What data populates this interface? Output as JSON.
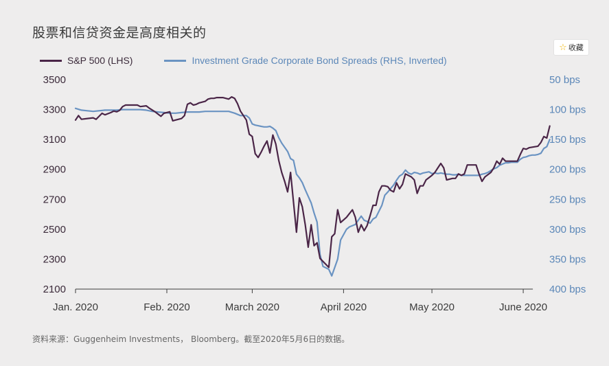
{
  "title": "股票和信贷资金是高度相关的",
  "favorite": {
    "icon": "star-icon",
    "label": "收藏"
  },
  "source": "资料来源：Guggenheim Investments， Bloomberg。截至2020年5月6日的数据。",
  "colors": {
    "sp500": "#4a2547",
    "spreads": "#6a93c2",
    "left_axis": "#3b2a3a",
    "right_axis": "#5b87b8",
    "x_axis": "#3b3b3b"
  },
  "chart_data": {
    "type": "line",
    "x_ticks": [
      {
        "label": "Jan. 2020",
        "day": 0
      },
      {
        "label": "Feb. 2020",
        "day": 31
      },
      {
        "label": "March 2020",
        "day": 60
      },
      {
        "label": "April 2020",
        "day": 91
      },
      {
        "label": "May 2020",
        "day": 121
      },
      {
        "label": "June 2020",
        "day": 152
      }
    ],
    "left_axis": {
      "label": "",
      "min": 2100,
      "max": 3500,
      "ticks": [
        3500,
        3300,
        3100,
        2900,
        2700,
        2500,
        2300,
        2100
      ]
    },
    "right_axis": {
      "label": "",
      "inverted": true,
      "min": 50,
      "max": 400,
      "ticks": [
        50,
        100,
        150,
        200,
        250,
        300,
        350,
        400
      ],
      "tick_labels": [
        "50 bps",
        "100 bps",
        "150 bps",
        "200 bps",
        "250 bps",
        "300 bps",
        "350 bps",
        "400 bps"
      ]
    },
    "series": [
      {
        "name": "S&P 500 (LHS)",
        "axis": "left",
        "points": [
          [
            0,
            3230
          ],
          [
            1,
            3260
          ],
          [
            2,
            3235
          ],
          [
            4,
            3240
          ],
          [
            6,
            3245
          ],
          [
            7,
            3235
          ],
          [
            8,
            3255
          ],
          [
            9,
            3275
          ],
          [
            10,
            3265
          ],
          [
            12,
            3280
          ],
          [
            13,
            3290
          ],
          [
            14,
            3285
          ],
          [
            15,
            3295
          ],
          [
            16,
            3320
          ],
          [
            17,
            3330
          ],
          [
            20,
            3330
          ],
          [
            21,
            3330
          ],
          [
            22,
            3320
          ],
          [
            24,
            3325
          ],
          [
            25,
            3310
          ],
          [
            27,
            3285
          ],
          [
            28,
            3270
          ],
          [
            29,
            3255
          ],
          [
            30,
            3275
          ],
          [
            32,
            3285
          ],
          [
            33,
            3225
          ],
          [
            35,
            3235
          ],
          [
            36,
            3240
          ],
          [
            37,
            3260
          ],
          [
            38,
            3335
          ],
          [
            39,
            3345
          ],
          [
            40,
            3330
          ],
          [
            41,
            3335
          ],
          [
            42,
            3345
          ],
          [
            44,
            3355
          ],
          [
            45,
            3370
          ],
          [
            46,
            3375
          ],
          [
            47,
            3375
          ],
          [
            48,
            3380
          ],
          [
            49,
            3380
          ],
          [
            50,
            3380
          ],
          [
            51,
            3375
          ],
          [
            52,
            3370
          ],
          [
            53,
            3385
          ],
          [
            54,
            3375
          ],
          [
            55,
            3340
          ],
          [
            56,
            3290
          ],
          [
            58,
            3230
          ],
          [
            59,
            3135
          ],
          [
            60,
            3120
          ],
          [
            61,
            3005
          ],
          [
            62,
            2980
          ],
          [
            63,
            3015
          ],
          [
            64,
            3055
          ],
          [
            65,
            3090
          ],
          [
            66,
            3010
          ],
          [
            67,
            3130
          ],
          [
            68,
            3070
          ],
          [
            69,
            2960
          ],
          [
            70,
            2880
          ],
          [
            71,
            2820
          ],
          [
            72,
            2750
          ],
          [
            73,
            2880
          ],
          [
            75,
            2480
          ],
          [
            76,
            2710
          ],
          [
            77,
            2650
          ],
          [
            78,
            2530
          ],
          [
            79,
            2380
          ],
          [
            80,
            2530
          ],
          [
            81,
            2390
          ],
          [
            82,
            2410
          ],
          [
            83,
            2305
          ],
          [
            86,
            2245
          ],
          [
            87,
            2450
          ],
          [
            88,
            2470
          ],
          [
            89,
            2630
          ],
          [
            90,
            2545
          ],
          [
            92,
            2580
          ],
          [
            94,
            2630
          ],
          [
            95,
            2580
          ],
          [
            96,
            2480
          ],
          [
            97,
            2530
          ],
          [
            98,
            2490
          ],
          [
            99,
            2525
          ],
          [
            100,
            2590
          ],
          [
            101,
            2660
          ],
          [
            102,
            2660
          ],
          [
            103,
            2750
          ],
          [
            104,
            2790
          ],
          [
            105,
            2790
          ],
          [
            106,
            2785
          ],
          [
            107,
            2760
          ],
          [
            108,
            2750
          ],
          [
            109,
            2810
          ],
          [
            110,
            2770
          ],
          [
            111,
            2800
          ],
          [
            112,
            2870
          ],
          [
            114,
            2850
          ],
          [
            115,
            2830
          ],
          [
            116,
            2740
          ],
          [
            117,
            2790
          ],
          [
            118,
            2790
          ],
          [
            119,
            2830
          ],
          [
            121,
            2860
          ],
          [
            122,
            2880
          ],
          [
            123,
            2910
          ],
          [
            124,
            2940
          ],
          [
            125,
            2910
          ],
          [
            126,
            2830
          ],
          [
            128,
            2840
          ],
          [
            129,
            2840
          ],
          [
            130,
            2870
          ],
          [
            131,
            2860
          ],
          [
            132,
            2870
          ],
          [
            133,
            2930
          ],
          [
            135,
            2930
          ],
          [
            136,
            2930
          ],
          [
            137,
            2870
          ],
          [
            138,
            2820
          ],
          [
            139,
            2850
          ],
          [
            141,
            2880
          ],
          [
            142,
            2910
          ],
          [
            143,
            2955
          ],
          [
            144,
            2935
          ],
          [
            145,
            2975
          ],
          [
            146,
            2955
          ],
          [
            150,
            2955
          ],
          [
            151,
            3000
          ],
          [
            152,
            3040
          ],
          [
            153,
            3035
          ],
          [
            154,
            3045
          ],
          [
            157,
            3055
          ],
          [
            158,
            3080
          ],
          [
            159,
            3120
          ],
          [
            160,
            3110
          ],
          [
            161,
            3190
          ]
        ]
      },
      {
        "name": "Investment Grade Corporate Bond Spreads (RHS, Inverted)",
        "axis": "right",
        "points": [
          [
            0,
            98
          ],
          [
            2,
            101
          ],
          [
            4,
            102
          ],
          [
            6,
            103
          ],
          [
            8,
            102
          ],
          [
            10,
            101
          ],
          [
            12,
            101
          ],
          [
            14,
            101
          ],
          [
            16,
            100
          ],
          [
            18,
            100
          ],
          [
            20,
            100
          ],
          [
            22,
            100
          ],
          [
            24,
            101
          ],
          [
            26,
            103
          ],
          [
            28,
            104
          ],
          [
            30,
            105
          ],
          [
            32,
            106
          ],
          [
            34,
            106
          ],
          [
            36,
            105
          ],
          [
            38,
            104
          ],
          [
            40,
            104
          ],
          [
            42,
            104
          ],
          [
            44,
            103
          ],
          [
            46,
            103
          ],
          [
            48,
            103
          ],
          [
            50,
            103
          ],
          [
            52,
            103
          ],
          [
            54,
            106
          ],
          [
            56,
            110
          ],
          [
            58,
            110
          ],
          [
            59,
            114
          ],
          [
            60,
            124
          ],
          [
            61,
            126
          ],
          [
            62,
            127
          ],
          [
            63,
            128
          ],
          [
            64,
            129
          ],
          [
            65,
            129
          ],
          [
            66,
            128
          ],
          [
            67,
            131
          ],
          [
            68,
            135
          ],
          [
            69,
            147
          ],
          [
            70,
            156
          ],
          [
            71,
            163
          ],
          [
            72,
            170
          ],
          [
            73,
            182
          ],
          [
            74,
            185
          ],
          [
            75,
            208
          ],
          [
            76,
            214
          ],
          [
            77,
            222
          ],
          [
            78,
            234
          ],
          [
            79,
            245
          ],
          [
            80,
            256
          ],
          [
            81,
            273
          ],
          [
            82,
            288
          ],
          [
            83,
            342
          ],
          [
            84,
            362
          ],
          [
            86,
            367
          ],
          [
            87,
            378
          ],
          [
            89,
            350
          ],
          [
            90,
            318
          ],
          [
            92,
            300
          ],
          [
            93,
            296
          ],
          [
            95,
            292
          ],
          [
            96,
            285
          ],
          [
            97,
            278
          ],
          [
            98,
            285
          ],
          [
            99,
            287
          ],
          [
            100,
            290
          ],
          [
            101,
            283
          ],
          [
            102,
            280
          ],
          [
            103,
            270
          ],
          [
            104,
            260
          ],
          [
            105,
            243
          ],
          [
            106,
            238
          ],
          [
            107,
            232
          ],
          [
            108,
            226
          ],
          [
            109,
            218
          ],
          [
            110,
            211
          ],
          [
            111,
            208
          ],
          [
            112,
            201
          ],
          [
            113,
            206
          ],
          [
            114,
            208
          ],
          [
            115,
            205
          ],
          [
            116,
            206
          ],
          [
            117,
            208
          ],
          [
            118,
            206
          ],
          [
            119,
            205
          ],
          [
            120,
            204
          ],
          [
            121,
            207
          ],
          [
            122,
            206
          ],
          [
            123,
            207
          ],
          [
            124,
            206
          ],
          [
            125,
            207
          ],
          [
            126,
            208
          ],
          [
            127,
            208
          ],
          [
            128,
            209
          ],
          [
            129,
            209
          ],
          [
            130,
            208
          ],
          [
            131,
            210
          ],
          [
            132,
            210
          ],
          [
            133,
            210
          ],
          [
            134,
            210
          ],
          [
            135,
            210
          ],
          [
            136,
            210
          ],
          [
            137,
            210
          ],
          [
            138,
            208
          ],
          [
            139,
            207
          ],
          [
            140,
            205
          ],
          [
            141,
            202
          ],
          [
            142,
            199
          ],
          [
            143,
            197
          ],
          [
            144,
            193
          ],
          [
            145,
            191
          ],
          [
            146,
            189
          ],
          [
            147,
            189
          ],
          [
            148,
            188
          ],
          [
            149,
            188
          ],
          [
            150,
            188
          ],
          [
            151,
            183
          ],
          [
            152,
            180
          ],
          [
            153,
            179
          ],
          [
            154,
            177
          ],
          [
            155,
            176
          ],
          [
            156,
            176
          ],
          [
            157,
            175
          ],
          [
            158,
            173
          ],
          [
            159,
            165
          ],
          [
            160,
            162
          ],
          [
            161,
            150
          ]
        ]
      }
    ]
  }
}
